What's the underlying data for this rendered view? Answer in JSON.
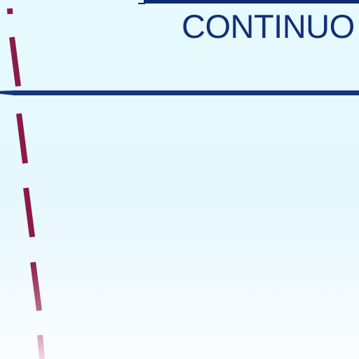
{
  "header": {
    "title": "CONTINUO"
  },
  "colors": {
    "background": "#e6faff",
    "navy_rule": "#0d2b6e",
    "heading_text": "#132f78",
    "dashed_line": "#8b1a4a"
  }
}
